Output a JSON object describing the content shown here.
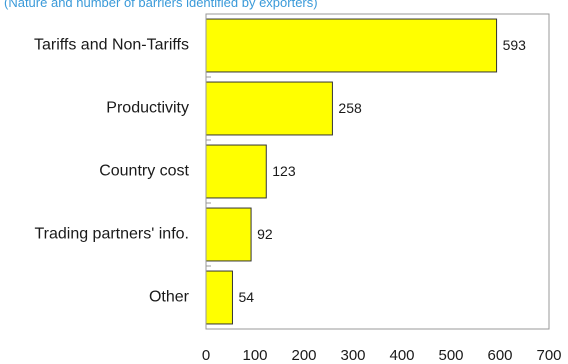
{
  "subtitle": "(Nature and number of barriers identified by exporters)",
  "chart_data": {
    "type": "bar",
    "orientation": "horizontal",
    "title": "",
    "subtitle": "(Nature and number of barriers identified by exporters)",
    "categories": [
      "Tariffs and Non-Tariffs",
      "Productivity",
      "Country cost",
      "Trading partners' info.",
      "Other"
    ],
    "values": [
      593,
      258,
      123,
      92,
      54
    ],
    "xlim": [
      0,
      700
    ],
    "xticks": [
      0,
      100,
      200,
      300,
      400,
      500,
      600,
      700
    ],
    "xlabel": "",
    "ylabel": "",
    "bar_color": "#ffff00",
    "data_labels": true,
    "grid": false,
    "legend": "none"
  }
}
